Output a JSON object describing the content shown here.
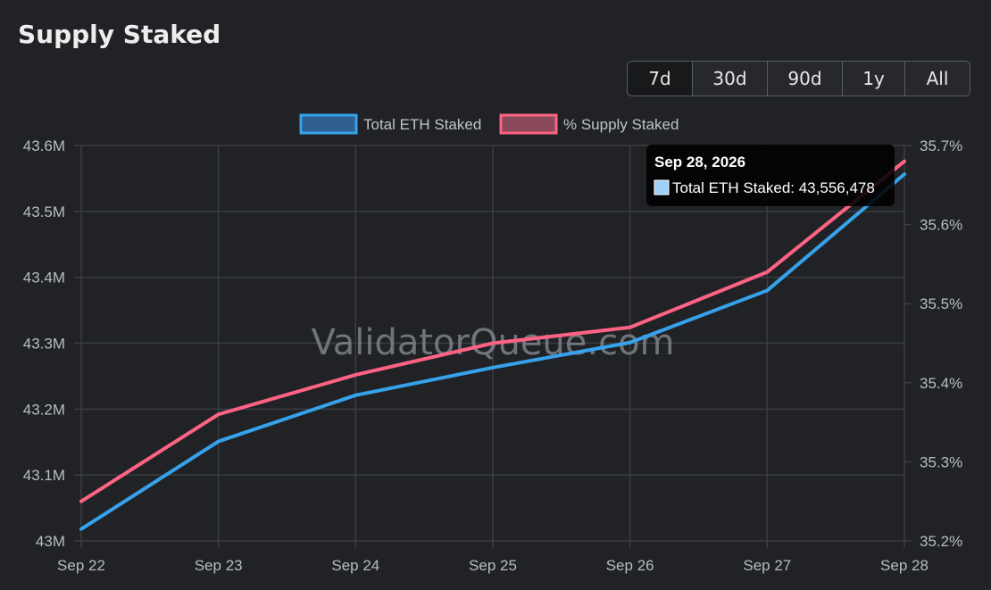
{
  "page": {
    "title": "Supply Staked"
  },
  "range_buttons": [
    {
      "label": "7d",
      "active": true
    },
    {
      "label": "30d",
      "active": false
    },
    {
      "label": "90d",
      "active": false
    },
    {
      "label": "1y",
      "active": false
    },
    {
      "label": "All",
      "active": false
    }
  ],
  "watermark": "ValidatorQueue.com",
  "tooltip": {
    "title": "Sep 28, 2026",
    "label": "Total ETH Staked: 43,556,478",
    "swatch_color": "#9fd0f5"
  },
  "chart_data": {
    "type": "line",
    "title": "Supply Staked",
    "x": [
      "Sep 22",
      "Sep 23",
      "Sep 24",
      "Sep 25",
      "Sep 26",
      "Sep 27",
      "Sep 28"
    ],
    "grid": true,
    "legend_position": "top-center",
    "series": [
      {
        "name": "Total ETH Staked",
        "axis": "left",
        "color": "#36a2eb",
        "fill": "#2f5f8e",
        "values": [
          43018000,
          43151000,
          43221000,
          43263000,
          43301000,
          43380000,
          43556478
        ]
      },
      {
        "name": "% Supply Staked",
        "axis": "right",
        "color": "#ff6384",
        "fill": "#8a4a5c",
        "values": [
          35.25,
          35.36,
          35.41,
          35.45,
          35.47,
          35.54,
          35.68
        ]
      }
    ],
    "y_left": {
      "ticks": [
        "43M",
        "43.1M",
        "43.2M",
        "43.3M",
        "43.4M",
        "43.5M",
        "43.6M"
      ],
      "tick_values": [
        43000000,
        43100000,
        43200000,
        43300000,
        43400000,
        43500000,
        43600000
      ],
      "ylim": [
        43000000,
        43600000
      ]
    },
    "y_right": {
      "ticks": [
        "35.2%",
        "35.3%",
        "35.4%",
        "35.5%",
        "35.6%",
        "35.7%"
      ],
      "tick_values": [
        35.2,
        35.3,
        35.4,
        35.5,
        35.6,
        35.7
      ],
      "ylim": [
        35.2,
        35.7
      ]
    }
  }
}
